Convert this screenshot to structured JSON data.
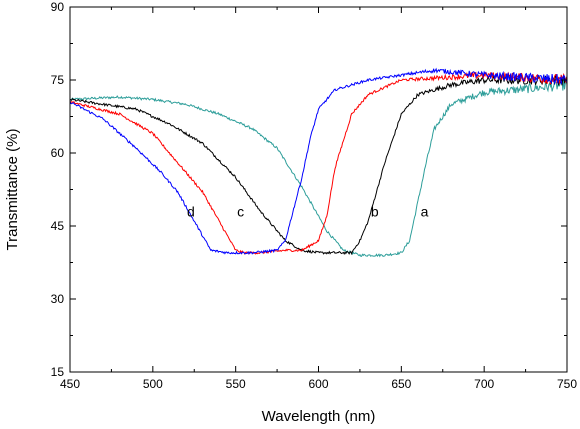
{
  "chart_data": {
    "type": "line",
    "title": "",
    "xlabel": "Wavelength (nm)",
    "ylabel": "Transmittance (%)",
    "xlim": [
      450,
      750
    ],
    "ylim": [
      15,
      90
    ],
    "xticks": [
      450,
      500,
      550,
      600,
      650,
      700,
      750
    ],
    "yticks": [
      15,
      30,
      45,
      60,
      75,
      90
    ],
    "grid": false,
    "legend": "none",
    "series": [
      {
        "name": "a",
        "color": "#2e9e9a",
        "x": [
          450,
          480,
          500,
          520,
          540,
          560,
          575,
          590,
          605,
          615,
          625,
          640,
          650,
          655,
          660,
          665,
          670,
          680,
          700,
          720,
          750
        ],
        "y": [
          71,
          71.5,
          71,
          70,
          68,
          65,
          61,
          53,
          44,
          40,
          39,
          39,
          39.5,
          42,
          50,
          58,
          65,
          70,
          72.5,
          73,
          74
        ]
      },
      {
        "name": "b",
        "color": "#000000",
        "x": [
          450,
          470,
          490,
          510,
          530,
          550,
          565,
          580,
          590,
          600,
          610,
          620,
          625,
          630,
          640,
          650,
          660,
          680,
          700,
          750
        ],
        "y": [
          71,
          70,
          69,
          66,
          62,
          55,
          48,
          42,
          40,
          39.5,
          39.5,
          39.5,
          42,
          46,
          58,
          68,
          72,
          74,
          75,
          75
        ]
      },
      {
        "name": "c",
        "color": "#ff0000",
        "x": [
          450,
          480,
          500,
          520,
          530,
          540,
          550,
          555,
          565,
          580,
          590,
          600,
          605,
          610,
          620,
          630,
          650,
          700,
          750
        ],
        "y": [
          70.5,
          68,
          64,
          56,
          52,
          46,
          40,
          39.5,
          39.5,
          40,
          40,
          42,
          47,
          57,
          68,
          72,
          75,
          76,
          75
        ]
      },
      {
        "name": "d",
        "color": "#0000ff",
        "x": [
          450,
          470,
          490,
          505,
          515,
          525,
          535,
          545,
          560,
          575,
          580,
          590,
          595,
          600,
          610,
          630,
          650,
          670,
          700,
          750
        ],
        "y": [
          70.5,
          67,
          61,
          56,
          52,
          46,
          40,
          39.5,
          39.5,
          40,
          42,
          55,
          63,
          69,
          73,
          75,
          76,
          77,
          76,
          75
        ]
      }
    ],
    "annotations": [
      {
        "text": "a",
        "x": 664,
        "y": 47
      },
      {
        "text": "b",
        "x": 634,
        "y": 47
      },
      {
        "text": "c",
        "x": 553,
        "y": 47
      },
      {
        "text": "d",
        "x": 523,
        "y": 47
      }
    ]
  }
}
